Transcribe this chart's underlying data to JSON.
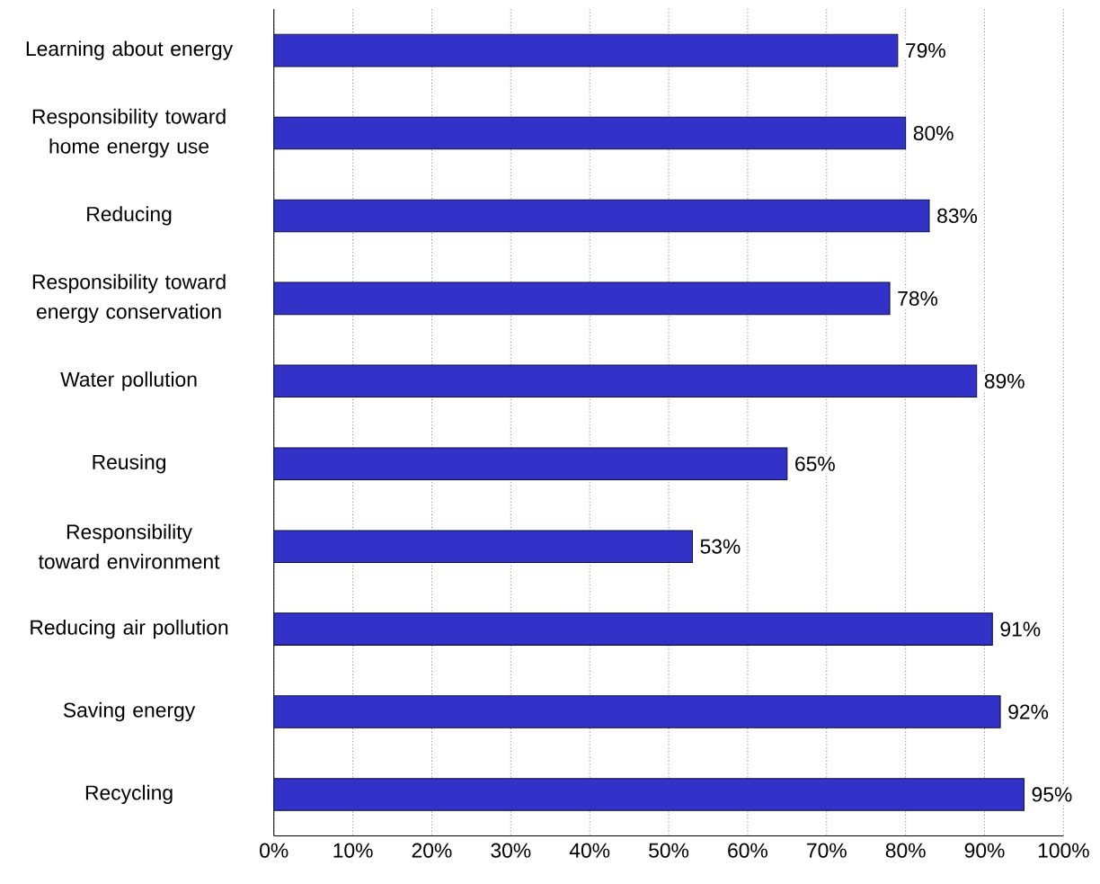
{
  "chart_data": {
    "type": "bar",
    "orientation": "horizontal",
    "categories": [
      "Learning about energy",
      "Responsibility toward home energy use",
      "Reducing",
      "Responsibility toward energy conservation",
      "Water pollution",
      "Reusing",
      "Responsibility toward environment",
      "Reducing air pollution",
      "Saving energy",
      "Recycling"
    ],
    "values": [
      79,
      80,
      83,
      78,
      89,
      65,
      53,
      91,
      92,
      95
    ],
    "value_labels": [
      "79%",
      "80%",
      "83%",
      "78%",
      "89%",
      "65%",
      "53%",
      "91%",
      "92%",
      "95%"
    ],
    "color": "#3232c8",
    "xlim": [
      0,
      100
    ],
    "xticks": [
      {
        "value": 0,
        "label": "0%"
      },
      {
        "value": 10,
        "label": "10%"
      },
      {
        "value": 20,
        "label": "20%"
      },
      {
        "value": 30,
        "label": "30%"
      },
      {
        "value": 40,
        "label": "40%"
      },
      {
        "value": 50,
        "label": "50%"
      },
      {
        "value": 60,
        "label": "60%"
      },
      {
        "value": 70,
        "label": "70%"
      },
      {
        "value": 80,
        "label": "80%"
      },
      {
        "value": 90,
        "label": "90%"
      },
      {
        "value": 100,
        "label": "100%"
      }
    ],
    "grid": "x"
  }
}
